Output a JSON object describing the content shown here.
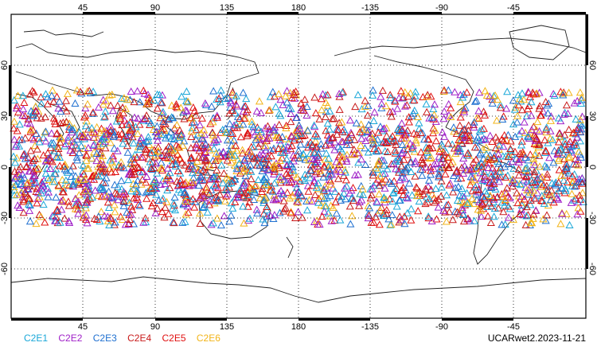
{
  "map": {
    "projection": "cylindrical equidistant",
    "central_longitude": 180,
    "lon_range": [
      0,
      360
    ],
    "lat_range": [
      -90,
      90
    ],
    "top_lon_labels": [
      "45",
      "90",
      "135",
      "180",
      "-135",
      "-90",
      "-45"
    ],
    "bottom_lon_labels": [
      "45",
      "90",
      "135",
      "180",
      "-135",
      "-90",
      "-45"
    ],
    "lat_labels": [
      "60",
      "30",
      "0",
      "-30",
      "-60"
    ],
    "grid": "dotted",
    "observation_band_lat": [
      -35,
      45
    ],
    "marker_shape": "open-triangle"
  },
  "legend": [
    {
      "name": "C2E1",
      "color": "#19a7d8"
    },
    {
      "name": "C2E2",
      "color": "#a020c8"
    },
    {
      "name": "C2E3",
      "color": "#1e6fd0"
    },
    {
      "name": "C2E4",
      "color": "#c81a1a"
    },
    {
      "name": "C2E5",
      "color": "#e01010"
    },
    {
      "name": "C2E6",
      "color": "#f2b418"
    }
  ],
  "product_label": "UCARwet2.2023-11-21"
}
